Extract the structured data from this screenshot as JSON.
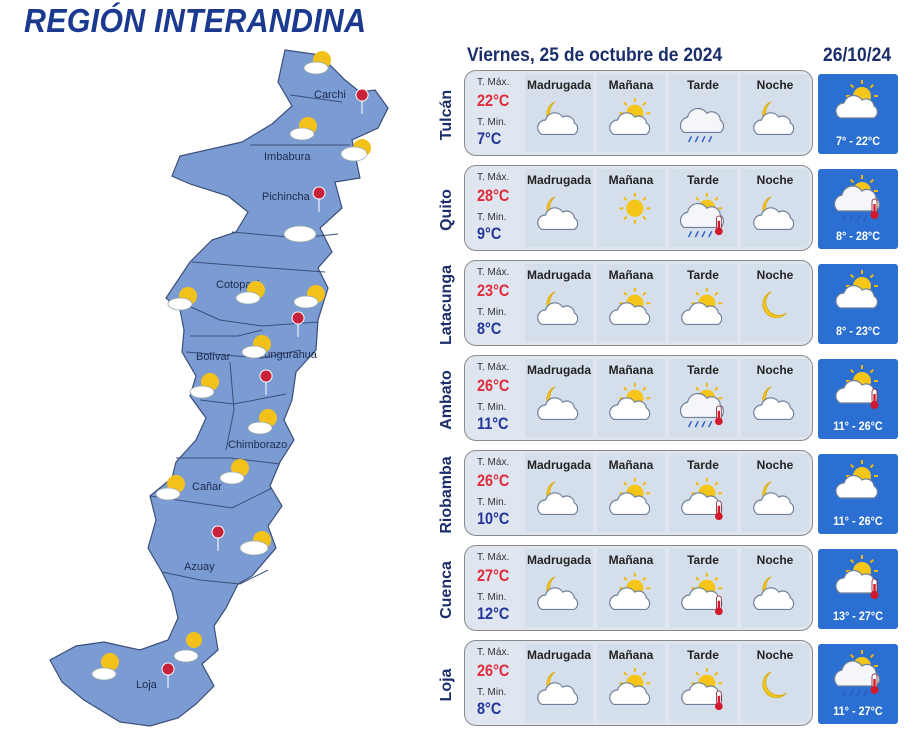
{
  "title": "REGIÓN INTERANDINA",
  "date": "Viernes, 25 de octubre de 2024",
  "next_date": "26/10/24",
  "labels": {
    "tmax": "T. Máx.",
    "tmin": "T. Min."
  },
  "periods": [
    "Madrugada",
    "Mañana",
    "Tarde",
    "Noche"
  ],
  "colors": {
    "max": "#e02b3a",
    "min": "#23349a",
    "tomorrow_bg": "#2a6fd1",
    "map_fill": "#7b9bd3",
    "title": "#1b3a8f"
  },
  "map_labels": [
    "Carchi",
    "Imbabura",
    "Pichincha",
    "Cotopaxi",
    "Tungurahua",
    "Bolívar",
    "Chimborazo",
    "Cañar",
    "Azuay",
    "Loja"
  ],
  "cities": [
    {
      "name": "Tulcán",
      "tmax": "22°C",
      "tmin": "7°C",
      "icons": [
        "moon-cloud-icon",
        "sun-cloud-icon",
        "rain-cloud-icon",
        "moon-cloud-icon"
      ],
      "tomorrow": {
        "range": "7° - 22°C",
        "icon": "sun-cloud-icon"
      }
    },
    {
      "name": "Quito",
      "tmax": "28°C",
      "tmin": "9°C",
      "icons": [
        "moon-cloud-icon",
        "sun-icon",
        "sun-rain-thermometer-icon",
        "moon-cloud-icon"
      ],
      "tomorrow": {
        "range": "8° - 28°C",
        "icon": "sun-rain-thermometer-icon"
      }
    },
    {
      "name": "Latacunga",
      "tmax": "23°C",
      "tmin": "8°C",
      "icons": [
        "moon-cloud-icon",
        "sun-cloud-icon",
        "sun-cloud-icon",
        "moon-icon"
      ],
      "tomorrow": {
        "range": "8° - 23°C",
        "icon": "sun-cloud-icon"
      }
    },
    {
      "name": "Ambato",
      "tmax": "26°C",
      "tmin": "11°C",
      "icons": [
        "moon-cloud-icon",
        "sun-cloud-icon",
        "sun-rain-thermometer-icon",
        "moon-cloud-icon"
      ],
      "tomorrow": {
        "range": "11° - 26°C",
        "icon": "sun-cloud-thermometer-icon"
      }
    },
    {
      "name": "Riobamba",
      "tmax": "26°C",
      "tmin": "10°C",
      "icons": [
        "moon-cloud-icon",
        "sun-cloud-icon",
        "sun-cloud-thermometer-icon",
        "moon-cloud-icon"
      ],
      "tomorrow": {
        "range": "11° - 26°C",
        "icon": "sun-cloud-icon"
      }
    },
    {
      "name": "Cuenca",
      "tmax": "27°C",
      "tmin": "12°C",
      "icons": [
        "moon-cloud-icon",
        "sun-cloud-icon",
        "sun-cloud-thermometer-icon",
        "moon-cloud-icon"
      ],
      "tomorrow": {
        "range": "13° - 27°C",
        "icon": "sun-cloud-thermometer-icon"
      }
    },
    {
      "name": "Loja",
      "tmax": "26°C",
      "tmin": "8°C",
      "icons": [
        "moon-cloud-icon",
        "sun-cloud-icon",
        "sun-cloud-thermometer-icon",
        "moon-icon"
      ],
      "tomorrow": {
        "range": "11° - 27°C",
        "icon": "sun-rain-thermometer-icon"
      }
    }
  ]
}
